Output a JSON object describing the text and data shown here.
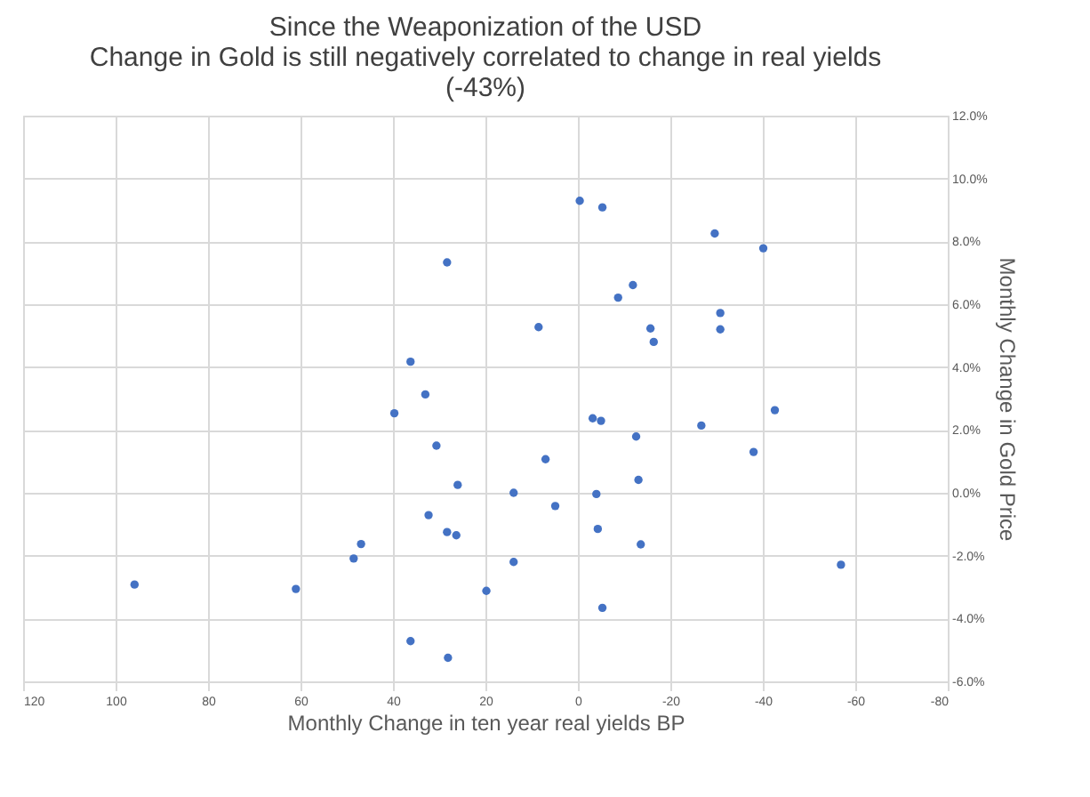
{
  "chart_data": {
    "type": "scatter",
    "title": [
      "Since the Weaponization of the USD",
      "Change in Gold is still negatively correlated to change in real yields",
      "(-43%)"
    ],
    "xlabel": "Monthly Change in ten year real yields BP",
    "ylabel": "Monthly Change in Gold Price",
    "x": [
      28.3,
      36.2,
      33.0,
      39.7,
      30.6,
      26.0,
      13.9,
      32.3,
      28.3,
      26.3,
      46.9,
      48.5,
      13.9,
      95.9,
      61.0,
      19.8,
      36.2,
      28.1,
      -0.4,
      -5.3,
      -29.6,
      -40.1,
      -11.9,
      -8.7,
      -30.8,
      8.5,
      -15.7,
      -30.8,
      -16.4,
      -42.6,
      -3.2,
      -5.0,
      -26.7,
      -12.6,
      -38.0,
      7.0,
      -13.1,
      -4.0,
      4.9,
      -4.3,
      -13.6,
      -56.9,
      -5.3
    ],
    "series": [
      {
        "color": "#4472c4",
        "values": [
          7.33,
          4.17,
          3.13,
          2.53,
          1.5,
          0.25,
          0.0,
          -0.71,
          -1.25,
          -1.35,
          -1.63,
          -2.09,
          -2.2,
          -2.92,
          -3.06,
          -3.12,
          -4.72,
          -5.25,
          9.29,
          9.08,
          8.25,
          7.78,
          6.61,
          6.21,
          5.72,
          5.27,
          5.23,
          5.2,
          4.8,
          2.63,
          2.37,
          2.29,
          2.14,
          1.79,
          1.3,
          1.07,
          0.41,
          -0.04,
          -0.42,
          -1.15,
          -1.64,
          -2.29,
          -3.66
        ]
      }
    ],
    "xlim": [
      120,
      -80
    ],
    "xticks": [
      120,
      100,
      80,
      60,
      40,
      20,
      0,
      -20,
      -40,
      -60,
      -80
    ],
    "ylim": [
      -6,
      12
    ],
    "yticks": [
      {
        "value": -6,
        "label": "-6.0%"
      },
      {
        "value": -4,
        "label": "-4.0%"
      },
      {
        "value": -2,
        "label": "-2.0%"
      },
      {
        "value": 0,
        "label": "0.0%"
      },
      {
        "value": 2,
        "label": "2.0%"
      },
      {
        "value": 4,
        "label": "4.0%"
      },
      {
        "value": 6,
        "label": "6.0%"
      },
      {
        "value": 8,
        "label": "8.0%"
      },
      {
        "value": 10,
        "label": "10.0%"
      },
      {
        "value": 12,
        "label": "12.0%"
      }
    ],
    "grid": true,
    "marker": "circle"
  }
}
